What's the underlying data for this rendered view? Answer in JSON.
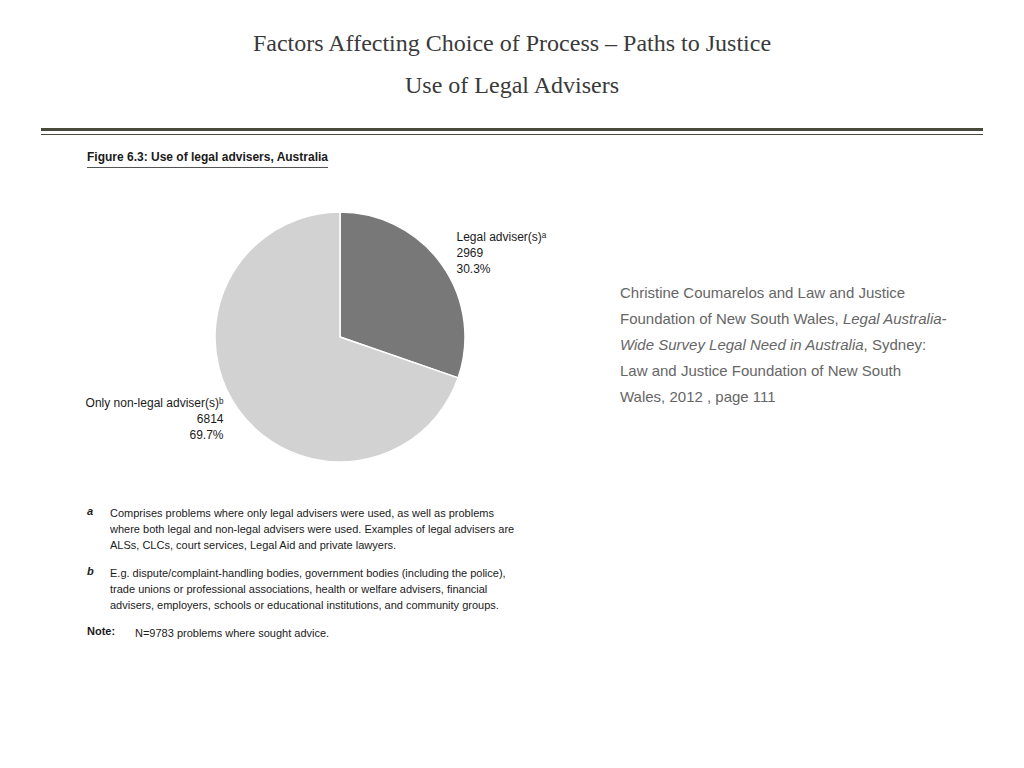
{
  "chart_data": {
    "type": "pie",
    "title": "Factors Affecting Choice of Process – Paths to Justice",
    "subtitle": "Use of Legal Advisers",
    "figure_title": "Figure 6.3:  Use of legal advisers, Australia",
    "categories": [
      "Legal adviser(s)ᵃ",
      "Only non-legal adviser(s)ᵇ"
    ],
    "values": [
      30.3,
      69.7
    ],
    "value_labels": [
      "30.3%",
      "69.7%"
    ],
    "counts": [
      2969,
      6814
    ],
    "colors": [
      "#787878",
      "#d2d2d2"
    ],
    "data_labels": true,
    "annotations": [
      {
        "label": "a",
        "text": "Comprises problems where only legal advisers were used, as well as problems\nwhere both legal and non-legal advisers were used. Examples of legal advisers are\nALSs, CLCs, court services, Legal Aid and private lawyers."
      },
      {
        "label": "b",
        "text": "E.g. dispute/complaint-handling bodies, government bodies (including the police),\ntrade unions or professional associations, health or welfare advisers, financial\nadvisers, employers, schools or educational institutions, and community groups."
      },
      {
        "label": "Note:",
        "text": "N=9783 problems where sought advice."
      }
    ],
    "source": {
      "pre_italic": "Christine Coumarelos and Law and Justice Foundation of New South Wales, ",
      "italic": "Legal Australia-Wide Survey Legal Need in Australia",
      "post_italic": ", Sydney: Law and Justice Foundation of New South Wales, 2012 , page 111"
    }
  }
}
